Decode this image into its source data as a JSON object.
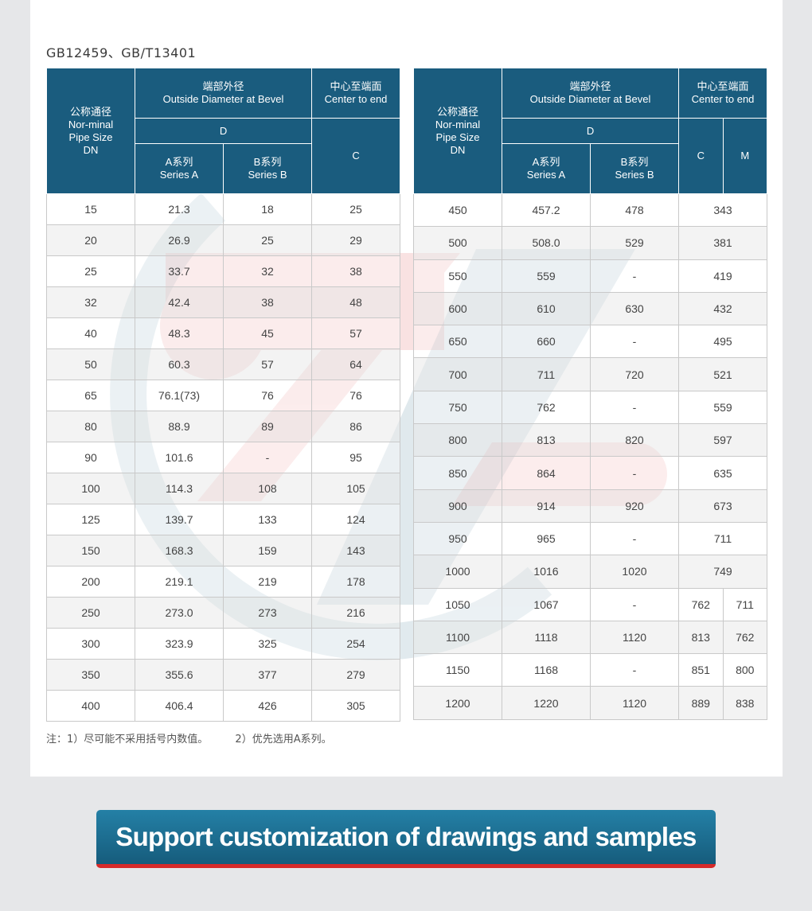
{
  "header": {
    "standard": "GB12459、GB/T13401"
  },
  "table_header": {
    "dn_cn": "公称通径",
    "dn_en1": "Nor-minal",
    "dn_en2": "Pipe Size",
    "dn_en3": "DN",
    "od_cn": "端部外径",
    "od_en": "Outside Diameter at Bevel",
    "ce_cn": "中心至端面",
    "ce_en": "Center to end",
    "d": "D",
    "a_cn": "A系列",
    "a_en": "Series A",
    "b_cn": "B系列",
    "b_en": "Series B",
    "c": "C",
    "m": "M"
  },
  "left_rows": [
    {
      "dn": "15",
      "a": "21.3",
      "b": "18",
      "c": "25"
    },
    {
      "dn": "20",
      "a": "26.9",
      "b": "25",
      "c": "29"
    },
    {
      "dn": "25",
      "a": "33.7",
      "b": "32",
      "c": "38"
    },
    {
      "dn": "32",
      "a": "42.4",
      "b": "38",
      "c": "48"
    },
    {
      "dn": "40",
      "a": "48.3",
      "b": "45",
      "c": "57"
    },
    {
      "dn": "50",
      "a": "60.3",
      "b": "57",
      "c": "64"
    },
    {
      "dn": "65",
      "a": "76.1(73)",
      "b": "76",
      "c": "76"
    },
    {
      "dn": "80",
      "a": "88.9",
      "b": "89",
      "c": "86"
    },
    {
      "dn": "90",
      "a": "101.6",
      "b": "-",
      "c": "95"
    },
    {
      "dn": "100",
      "a": "114.3",
      "b": "108",
      "c": "105"
    },
    {
      "dn": "125",
      "a": "139.7",
      "b": "133",
      "c": "124"
    },
    {
      "dn": "150",
      "a": "168.3",
      "b": "159",
      "c": "143"
    },
    {
      "dn": "200",
      "a": "219.1",
      "b": "219",
      "c": "178"
    },
    {
      "dn": "250",
      "a": "273.0",
      "b": "273",
      "c": "216"
    },
    {
      "dn": "300",
      "a": "323.9",
      "b": "325",
      "c": "254"
    },
    {
      "dn": "350",
      "a": "355.6",
      "b": "377",
      "c": "279"
    },
    {
      "dn": "400",
      "a": "406.4",
      "b": "426",
      "c": "305"
    }
  ],
  "right_rows": [
    {
      "dn": "450",
      "a": "457.2",
      "b": "478",
      "c": "343"
    },
    {
      "dn": "500",
      "a": "508.0",
      "b": "529",
      "c": "381"
    },
    {
      "dn": "550",
      "a": "559",
      "b": "-",
      "c": "419"
    },
    {
      "dn": "600",
      "a": "610",
      "b": "630",
      "c": "432"
    },
    {
      "dn": "650",
      "a": "660",
      "b": "-",
      "c": "495"
    },
    {
      "dn": "700",
      "a": "711",
      "b": "720",
      "c": "521"
    },
    {
      "dn": "750",
      "a": "762",
      "b": "-",
      "c": "559"
    },
    {
      "dn": "800",
      "a": "813",
      "b": "820",
      "c": "597"
    },
    {
      "dn": "850",
      "a": "864",
      "b": "-",
      "c": "635"
    },
    {
      "dn": "900",
      "a": "914",
      "b": "920",
      "c": "673"
    },
    {
      "dn": "950",
      "a": "965",
      "b": "-",
      "c": "711"
    },
    {
      "dn": "1000",
      "a": "1016",
      "b": "1020",
      "c": "749"
    },
    {
      "dn": "1050",
      "a": "1067",
      "b": "-",
      "c": "762",
      "m": "711"
    },
    {
      "dn": "1100",
      "a": "1118",
      "b": "1120",
      "c": "813",
      "m": "762"
    },
    {
      "dn": "1150",
      "a": "1168",
      "b": "-",
      "c": "851",
      "m": "800"
    },
    {
      "dn": "1200",
      "a": "1220",
      "b": "1120",
      "c": "889",
      "m": "838"
    }
  ],
  "notes": {
    "note1": "注：1）尽可能不采用括号内数值。",
    "note2": "2）优先选用A系列。"
  },
  "cta": {
    "label": "Support customization of drawings and samples"
  },
  "colors": {
    "header_bg": "#1a5c7e",
    "cta_bg": "#1f7198",
    "cta_border": "#d62a2a",
    "page_bg": "#e6e7e9"
  }
}
